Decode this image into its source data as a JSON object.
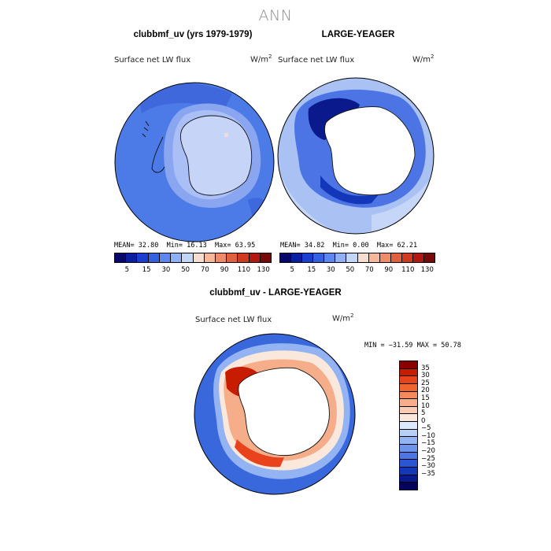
{
  "season": "ANN",
  "panels": [
    {
      "title": "clubbmf_uv (yrs 1979-1979)",
      "variable": "Surface net LW flux",
      "units_base": "W/m",
      "units_exp": "2",
      "mean": "32.80",
      "min": "16.13",
      "max": "63.95"
    },
    {
      "title": "LARGE-YEAGER",
      "variable": "Surface net LW flux",
      "units_base": "W/m",
      "units_exp": "2",
      "mean": "34.82",
      "min": "0.00",
      "max": "62.21"
    }
  ],
  "diff_panel": {
    "title": "clubbmf_uv - LARGE-YEAGER",
    "variable": "Surface net LW flux",
    "units_base": "W/m",
    "units_exp": "2",
    "min": "−31.59",
    "max": "50.78"
  },
  "stat_labels": {
    "mean": "MEAN=",
    "min": "Min=",
    "max": "Max=",
    "dmin": "MIN =",
    "dmax": "MAX ="
  },
  "colorbar_top": {
    "colors": [
      "#08086b",
      "#0a1fa0",
      "#1a3fd0",
      "#3560e0",
      "#5c86f0",
      "#8fb0f5",
      "#c4d6f8",
      "#f5ddd0",
      "#f5b69a",
      "#ee8c6a",
      "#e0613f",
      "#d03b20",
      "#b01810",
      "#7a0a0a"
    ],
    "tick_labels": [
      "5",
      "15",
      "30",
      "50",
      "70",
      "90",
      "110",
      "130"
    ]
  },
  "colorbar_diff": {
    "colors": [
      "#8a0000",
      "#c81c00",
      "#e8431c",
      "#f0652e",
      "#f48a5c",
      "#f6ad8a",
      "#f8ccb4",
      "#fbe8dc",
      "#dce8fb",
      "#b8cff6",
      "#93b3f2",
      "#6e93ec",
      "#4c74e4",
      "#2c55d6",
      "#1436b8",
      "#0a1a8c",
      "#04035e"
    ],
    "tick_labels": [
      "35",
      "30",
      "25",
      "20",
      "15",
      "10",
      "5",
      "0",
      "−5",
      "−10",
      "−15",
      "−20",
      "−25",
      "−30",
      "−35"
    ]
  },
  "chart_data": [
    {
      "type": "heatmap",
      "title": "clubbmf_uv (yrs 1979-1979)",
      "subtitle": "Surface net LW flux",
      "units": "W/m2",
      "projection": "polar stereographic (south)",
      "stats": {
        "mean": 32.8,
        "min": 16.13,
        "max": 63.95
      },
      "levels": [
        5,
        10,
        15,
        20,
        30,
        40,
        50,
        60,
        70,
        80,
        90,
        100,
        110,
        120,
        130
      ]
    },
    {
      "type": "heatmap",
      "title": "LARGE-YEAGER",
      "subtitle": "Surface net LW flux",
      "units": "W/m2",
      "projection": "polar stereographic (south)",
      "stats": {
        "mean": 34.82,
        "min": 0.0,
        "max": 62.21
      },
      "levels": [
        5,
        10,
        15,
        20,
        30,
        40,
        50,
        60,
        70,
        80,
        90,
        100,
        110,
        120,
        130
      ]
    },
    {
      "type": "heatmap",
      "title": "clubbmf_uv - LARGE-YEAGER",
      "subtitle": "Surface net LW flux",
      "units": "W/m2",
      "projection": "polar stereographic (south)",
      "stats": {
        "min": -31.59,
        "max": 50.78
      },
      "levels": [
        -35,
        -30,
        -25,
        -20,
        -15,
        -10,
        -5,
        0,
        5,
        10,
        15,
        20,
        25,
        30,
        35
      ]
    }
  ]
}
